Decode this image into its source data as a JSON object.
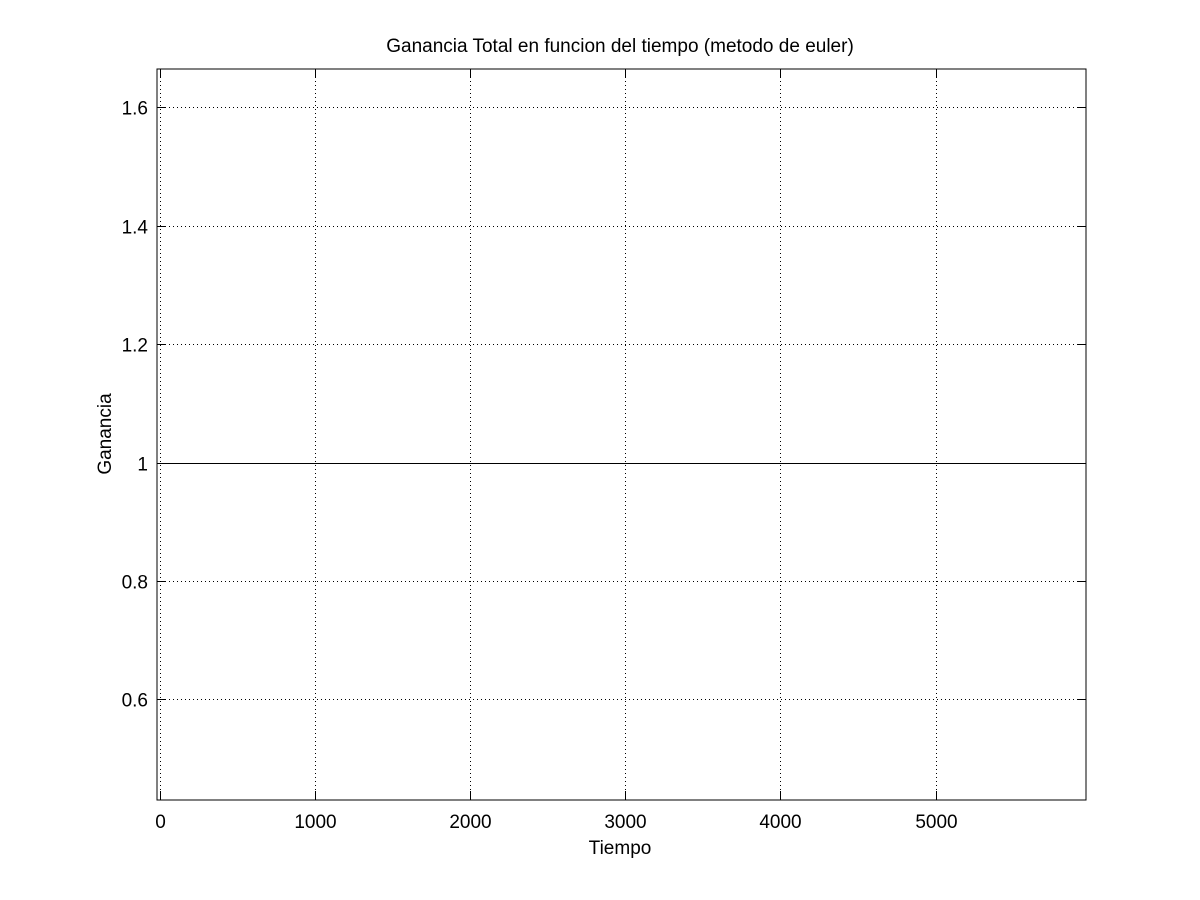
{
  "chart_data": {
    "type": "line",
    "title": "Ganancia Total en funcion del tiempo (metodo de euler)",
    "xlabel": "Tiempo",
    "ylabel": "Ganancia",
    "xlim": [
      -20,
      5970
    ],
    "ylim": [
      0.43,
      1.665
    ],
    "xticks": [
      0,
      1000,
      2000,
      3000,
      4000,
      5000
    ],
    "xtick_labels": [
      "0",
      "1000",
      "2000",
      "3000",
      "4000",
      "5000"
    ],
    "yticks": [
      0.6,
      0.8,
      1.0,
      1.2,
      1.4,
      1.6
    ],
    "ytick_labels": [
      "0.6",
      "0.8",
      "1",
      "1.2",
      "1.4",
      "1.6"
    ],
    "grid": true,
    "grid_style": "dotted",
    "series": [
      {
        "color": "#000000",
        "x": [
          0,
          5970
        ],
        "y": [
          1,
          1
        ]
      }
    ]
  }
}
